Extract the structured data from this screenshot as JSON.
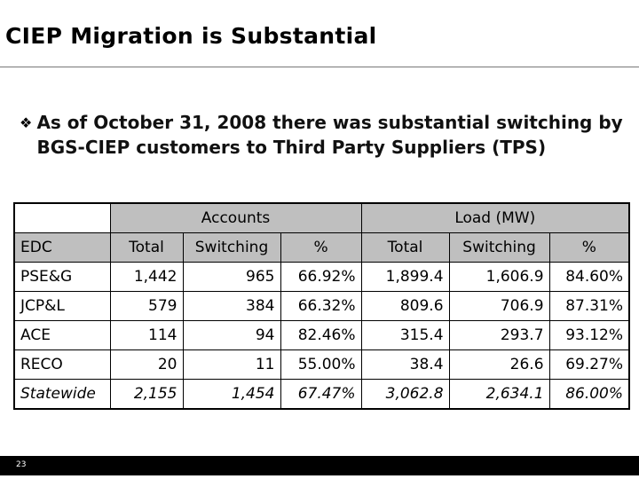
{
  "slide": {
    "title": "CIEP Migration is Substantial",
    "bullet": "As of October 31, 2008 there was substantial switching by BGS-CIEP customers to Third Party Suppliers (TPS)",
    "bullet_icon": "❖",
    "page_number": "23"
  },
  "table": {
    "group_headers": {
      "accounts": "Accounts",
      "load": "Load (MW)"
    },
    "columns": [
      "EDC",
      "Total",
      "Switching",
      "%",
      "Total",
      "Switching",
      "%"
    ],
    "rows": [
      [
        "PSE&G",
        "1,442",
        "965",
        "66.92%",
        "1,899.4",
        "1,606.9",
        "84.60%"
      ],
      [
        "JCP&L",
        "579",
        "384",
        "66.32%",
        "809.6",
        "706.9",
        "87.31%"
      ],
      [
        "ACE",
        "114",
        "94",
        "82.46%",
        "315.4",
        "293.7",
        "93.12%"
      ],
      [
        "RECO",
        "20",
        "11",
        "55.00%",
        "38.4",
        "26.6",
        "69.27%"
      ],
      [
        "Statewide",
        "2,155",
        "1,454",
        "67.47%",
        "3,062.8",
        "2,634.1",
        "86.00%"
      ]
    ]
  },
  "colors": {
    "header_fill": "#bfbfbf",
    "footer_bar": "#000000"
  }
}
